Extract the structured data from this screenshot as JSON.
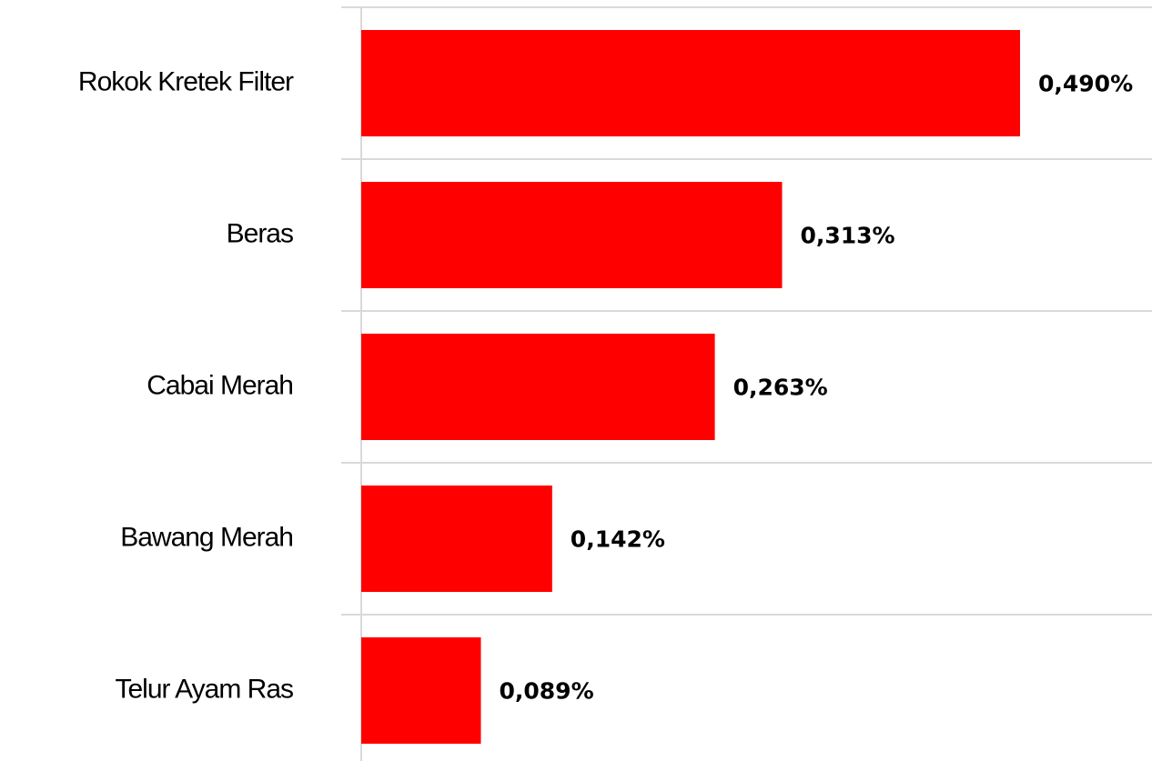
{
  "chart_data": {
    "type": "barh",
    "categories": [
      "Rokok Kretek Filter",
      "Beras",
      "Cabai Merah",
      "Bawang Merah",
      "Telur Ayam Ras"
    ],
    "values": [
      0.49,
      0.313,
      0.263,
      0.142,
      0.089
    ],
    "value_labels": [
      "0,490%",
      "0,313%",
      "0,263%",
      "0,142%",
      "0,089%"
    ],
    "color": "#ff0000"
  }
}
